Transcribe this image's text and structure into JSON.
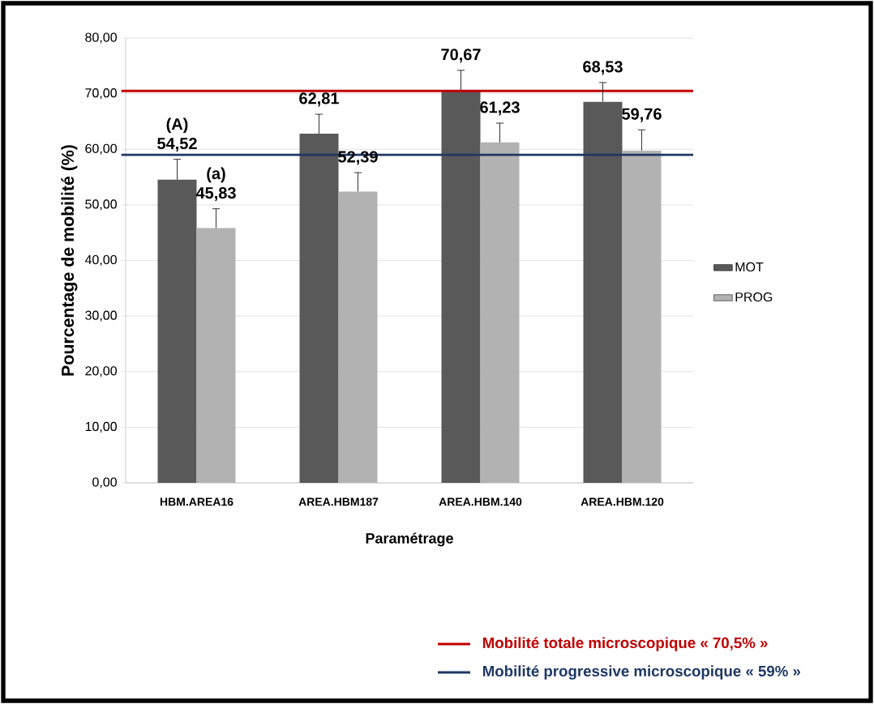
{
  "chart_data": {
    "type": "bar",
    "ylabel": "Pourcentage de mobilité (%)",
    "xlabel": "Paramétrage",
    "categories": [
      "HBM.AREA16",
      "AREA.HBM187",
      "AREA.HBM.140",
      "AREA.HBM.120"
    ],
    "series": [
      {
        "name": "MOT",
        "color": "#595959",
        "values": [
          54.52,
          62.81,
          70.67,
          68.53
        ],
        "value_labels": [
          "54,52",
          "62,81",
          "70,67",
          "68,53"
        ],
        "errors": [
          [
            54.52,
            58.2
          ],
          [
            62.81,
            66.3
          ],
          [
            70.67,
            74.2
          ],
          [
            68.53,
            72.0
          ]
        ]
      },
      {
        "name": "PROG",
        "color": "#b2b2b2",
        "values": [
          45.83,
          52.39,
          61.23,
          59.76
        ],
        "value_labels": [
          "45,83",
          "52,39",
          "61,23",
          "59,76"
        ],
        "errors": [
          [
            45.83,
            49.3
          ],
          [
            52.39,
            55.8
          ],
          [
            61.23,
            64.7
          ],
          [
            59.76,
            63.5
          ]
        ]
      }
    ],
    "ylim": [
      0,
      80
    ],
    "yticks": [
      {
        "value": 0,
        "label": "0,00"
      },
      {
        "value": 10,
        "label": "10,00"
      },
      {
        "value": 20,
        "label": "20,00"
      },
      {
        "value": 30,
        "label": "30,00"
      },
      {
        "value": 40,
        "label": "40,00"
      },
      {
        "value": 50,
        "label": "50,00"
      },
      {
        "value": 60,
        "label": "60,00"
      },
      {
        "value": 70,
        "label": "70,00"
      },
      {
        "value": 80,
        "label": "80,00"
      }
    ],
    "grid": "y",
    "legend": "right",
    "ref_lines": [
      {
        "axis": "y",
        "value": 70.5,
        "label": "Mobilité totale microscopique « 70,5% »",
        "color": "#c00000"
      },
      {
        "axis": "y",
        "value": 59,
        "label": "Mobilité progressive microscopique « 59% »",
        "color": "#1f3864"
      }
    ],
    "annotations": [
      "(A)",
      "(a)"
    ]
  }
}
